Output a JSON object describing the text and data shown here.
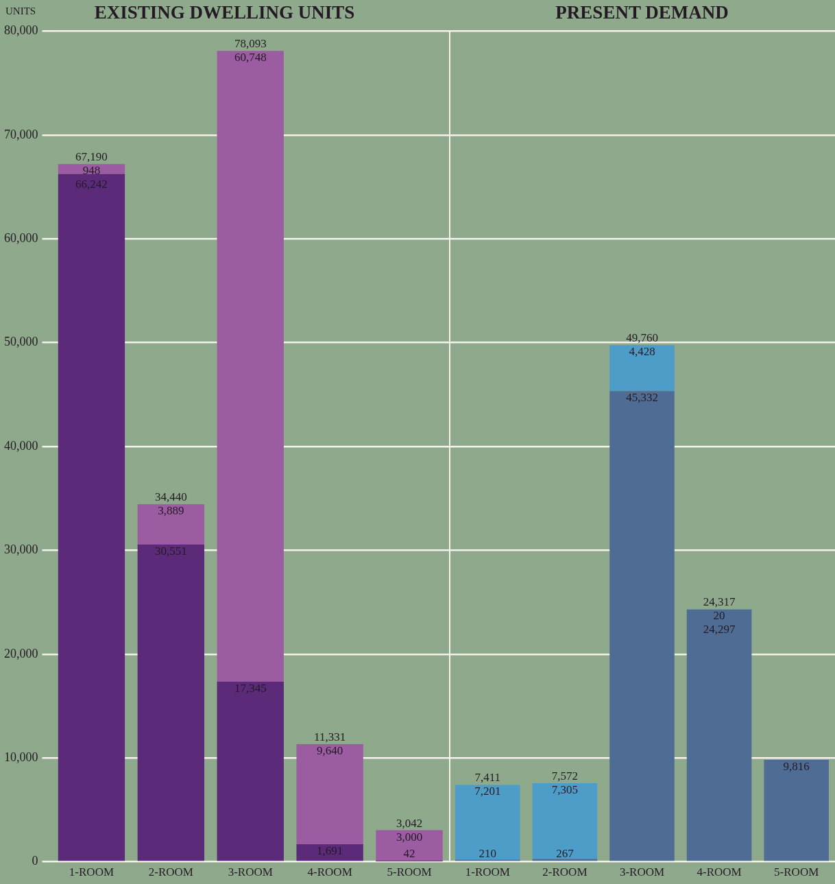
{
  "chart_data": [
    {
      "type": "bar",
      "title": "EXISTING DWELLING UNITS",
      "ylabel": "UNITS",
      "categories": [
        "1-ROOM",
        "2-ROOM",
        "3-ROOM",
        "4-ROOM",
        "5-ROOM"
      ],
      "stacked": true,
      "grid": "y",
      "legend": false,
      "series": [
        {
          "color": "#5b2a78",
          "values": [
            66242,
            30551,
            17345,
            1691,
            42
          ],
          "value_labels": [
            "66,242",
            "30,551",
            "17,345",
            "1,691",
            "42"
          ]
        },
        {
          "color": "#9b5ca2",
          "values": [
            948,
            3889,
            60748,
            9640,
            3000
          ],
          "value_labels": [
            "948",
            "3,889",
            "60,748",
            "9,640",
            "3,000"
          ]
        }
      ],
      "totals": [
        "67,190",
        "34,440",
        "78,093",
        "11,331",
        "3,042"
      ],
      "ylim": [
        0,
        80000
      ],
      "yticks": [
        {
          "value": 0,
          "label": "0"
        },
        {
          "value": 10000,
          "label": "10,000"
        },
        {
          "value": 20000,
          "label": "20,000"
        },
        {
          "value": 30000,
          "label": "30,000"
        },
        {
          "value": 40000,
          "label": "40,000"
        },
        {
          "value": 50000,
          "label": "50,000"
        },
        {
          "value": 60000,
          "label": "60,000"
        },
        {
          "value": 70000,
          "label": "70,000"
        },
        {
          "value": 80000,
          "label": "80,000"
        }
      ]
    },
    {
      "type": "bar",
      "title": "PRESENT DEMAND",
      "categories": [
        "1-ROOM",
        "2-ROOM",
        "3-ROOM",
        "4-ROOM",
        "5-ROOM"
      ],
      "stacked": true,
      "grid": "y",
      "legend": false,
      "tick_labels": "x",
      "series": [
        {
          "color": "#4f6d94",
          "values": [
            210,
            267,
            45332,
            24297,
            9816
          ],
          "value_labels": [
            "210",
            "267",
            "45,332",
            "24,297",
            "9,816"
          ]
        },
        {
          "color": "#4d9dc8",
          "values": [
            7201,
            7305,
            4428,
            20,
            null
          ],
          "value_labels": [
            "7,201",
            "7,305",
            "4,428",
            "20",
            null
          ]
        }
      ],
      "totals": [
        "7,411",
        "7,572",
        "49,760",
        "24,317",
        null
      ],
      "ylim": [
        0,
        80000
      ],
      "yticks": [
        {
          "value": 0,
          "label": null
        },
        {
          "value": 10000,
          "label": null
        },
        {
          "value": 20000,
          "label": null
        },
        {
          "value": 30000,
          "label": null
        },
        {
          "value": 40000,
          "label": null
        },
        {
          "value": 50000,
          "label": null
        },
        {
          "value": 60000,
          "label": null
        },
        {
          "value": 70000,
          "label": null
        },
        {
          "value": 80000,
          "label": null
        }
      ]
    }
  ]
}
